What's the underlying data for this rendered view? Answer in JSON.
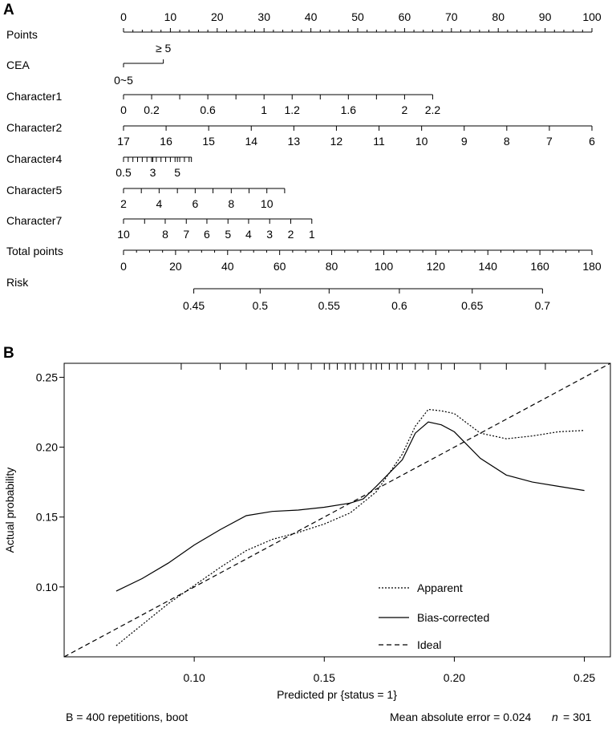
{
  "panels": {
    "a_label": "A",
    "b_label": "B"
  },
  "chart_data": [
    {
      "type": "nomogram",
      "rows": [
        {
          "name": "Points",
          "ticks": [
            {
              "label": "0",
              "points": 0
            },
            {
              "label": "10",
              "points": 10
            },
            {
              "label": "20",
              "points": 20
            },
            {
              "label": "30",
              "points": 30
            },
            {
              "label": "40",
              "points": 40
            },
            {
              "label": "50",
              "points": 50
            },
            {
              "label": "60",
              "points": 60
            },
            {
              "label": "70",
              "points": 70
            },
            {
              "label": "80",
              "points": 80
            },
            {
              "label": "90",
              "points": 90
            },
            {
              "label": "100",
              "points": 100
            }
          ],
          "minor_step": 2
        },
        {
          "name": "CEA",
          "ticks": [
            {
              "label": "0~5",
              "points": 0
            },
            {
              "label": "≥ 5",
              "points": 8.5
            }
          ]
        },
        {
          "name": "Character1",
          "ticks": [
            {
              "label": "0",
              "points": 0
            },
            {
              "label": "0.2",
              "points": 6
            },
            {
              "label": "0.6",
              "points": 18
            },
            {
              "label": "1",
              "points": 30
            },
            {
              "label": "1.2",
              "points": 36
            },
            {
              "label": "1.6",
              "points": 48
            },
            {
              "label": "2",
              "points": 60
            },
            {
              "label": "2.2",
              "points": 66
            }
          ],
          "extra_ticks": [
            12,
            24,
            42,
            54
          ]
        },
        {
          "name": "Character2",
          "ticks": [
            {
              "label": "17",
              "points": 0
            },
            {
              "label": "16",
              "points": 9.09
            },
            {
              "label": "15",
              "points": 18.18
            },
            {
              "label": "14",
              "points": 27.27
            },
            {
              "label": "13",
              "points": 36.36
            },
            {
              "label": "12",
              "points": 45.45
            },
            {
              "label": "11",
              "points": 54.55
            },
            {
              "label": "10",
              "points": 63.64
            },
            {
              "label": "9",
              "points": 72.73
            },
            {
              "label": "8",
              "points": 81.82
            },
            {
              "label": "7",
              "points": 90.91
            },
            {
              "label": "6",
              "points": 100
            }
          ]
        },
        {
          "name": "Character4",
          "ticks": [
            {
              "label": "0.5",
              "points": 0
            },
            {
              "label": "3",
              "points": 6.25
            },
            {
              "label": "5",
              "points": 11.5
            }
          ],
          "end_points": 14.5,
          "minor_step": 1.0
        },
        {
          "name": "Character5",
          "ticks": [
            {
              "label": "2",
              "points": 0
            },
            {
              "label": "4",
              "points": 7.6
            },
            {
              "label": "6",
              "points": 15.3
            },
            {
              "label": "8",
              "points": 23
            },
            {
              "label": "10",
              "points": 30.6
            }
          ],
          "end_points": 34.4,
          "extra_ticks": [
            3.8,
            11.5,
            19.1,
            26.8
          ]
        },
        {
          "name": "Character7",
          "ticks": [
            {
              "label": "10",
              "points": 0
            },
            {
              "label": "8",
              "points": 8.9
            },
            {
              "label": "7",
              "points": 13.4
            },
            {
              "label": "6",
              "points": 17.8
            },
            {
              "label": "5",
              "points": 22.3
            },
            {
              "label": "4",
              "points": 26.7
            },
            {
              "label": "3",
              "points": 31.2
            },
            {
              "label": "2",
              "points": 35.7
            },
            {
              "label": "1",
              "points": 40.2
            }
          ],
          "extra_ticks": [
            4.5
          ]
        },
        {
          "name": "Total points",
          "ticks": [
            {
              "label": "0",
              "value": 0
            },
            {
              "label": "20",
              "value": 20
            },
            {
              "label": "40",
              "value": 40
            },
            {
              "label": "60",
              "value": 60
            },
            {
              "label": "80",
              "value": 80
            },
            {
              "label": "100",
              "value": 100
            },
            {
              "label": "120",
              "value": 120
            },
            {
              "label": "140",
              "value": 140
            },
            {
              "label": "160",
              "value": 160
            },
            {
              "label": "180",
              "value": 180
            }
          ],
          "range": [
            0,
            180
          ],
          "minor_step": 5
        },
        {
          "name": "Risk",
          "ticks": [
            {
              "label": "0.45",
              "total": 27
            },
            {
              "label": "0.5",
              "total": 52.5
            },
            {
              "label": "0.55",
              "total": 79
            },
            {
              "label": "0.6",
              "total": 106
            },
            {
              "label": "0.65",
              "total": 134
            },
            {
              "label": "0.7",
              "total": 161
            }
          ]
        }
      ]
    },
    {
      "type": "line",
      "xlabel": "Predicted pr {status = 1}",
      "ylabel": "Actual probability",
      "xlim": [
        0.05,
        0.26
      ],
      "ylim": [
        0.05,
        0.26
      ],
      "xticks": [
        0.1,
        0.15,
        0.2,
        0.25
      ],
      "xtick_labels": [
        "0.10",
        "0.15",
        "0.20",
        "0.25"
      ],
      "yticks": [
        0.1,
        0.15,
        0.2,
        0.25
      ],
      "ytick_labels": [
        "0.10",
        "0.15",
        "0.20",
        "0.25"
      ],
      "series": [
        {
          "name": "Apparent",
          "style": "dotted",
          "x": [
            0.07,
            0.08,
            0.09,
            0.1,
            0.11,
            0.12,
            0.13,
            0.14,
            0.15,
            0.16,
            0.17,
            0.18,
            0.185,
            0.19,
            0.195,
            0.2,
            0.21,
            0.22,
            0.23,
            0.24,
            0.25
          ],
          "y": [
            0.058,
            0.073,
            0.088,
            0.101,
            0.114,
            0.126,
            0.134,
            0.139,
            0.145,
            0.153,
            0.168,
            0.195,
            0.215,
            0.227,
            0.226,
            0.224,
            0.21,
            0.206,
            0.208,
            0.211,
            0.212
          ]
        },
        {
          "name": "Bias-corrected",
          "style": "solid",
          "x": [
            0.07,
            0.08,
            0.09,
            0.1,
            0.11,
            0.12,
            0.13,
            0.14,
            0.15,
            0.16,
            0.165,
            0.17,
            0.18,
            0.185,
            0.19,
            0.195,
            0.2,
            0.21,
            0.22,
            0.23,
            0.24,
            0.25
          ],
          "y": [
            0.097,
            0.106,
            0.117,
            0.13,
            0.141,
            0.151,
            0.154,
            0.155,
            0.157,
            0.16,
            0.163,
            0.172,
            0.191,
            0.21,
            0.218,
            0.216,
            0.211,
            0.192,
            0.18,
            0.175,
            0.172,
            0.169
          ]
        },
        {
          "name": "Ideal",
          "style": "dashed",
          "x": [
            0.05,
            0.26
          ],
          "y": [
            0.05,
            0.26
          ]
        }
      ],
      "rug_x": [
        0.05,
        0.095,
        0.11,
        0.12,
        0.13,
        0.135,
        0.14,
        0.145,
        0.15,
        0.152,
        0.155,
        0.158,
        0.16,
        0.162,
        0.165,
        0.168,
        0.17,
        0.172,
        0.175,
        0.178,
        0.18,
        0.185,
        0.19,
        0.195,
        0.2,
        0.21,
        0.22,
        0.235
      ],
      "footer_left": "B = 400 repetitions, boot",
      "footer_mae": "Mean absolute error = 0.024",
      "footer_n_symbol": "n",
      "footer_n_value": "= 301"
    }
  ]
}
